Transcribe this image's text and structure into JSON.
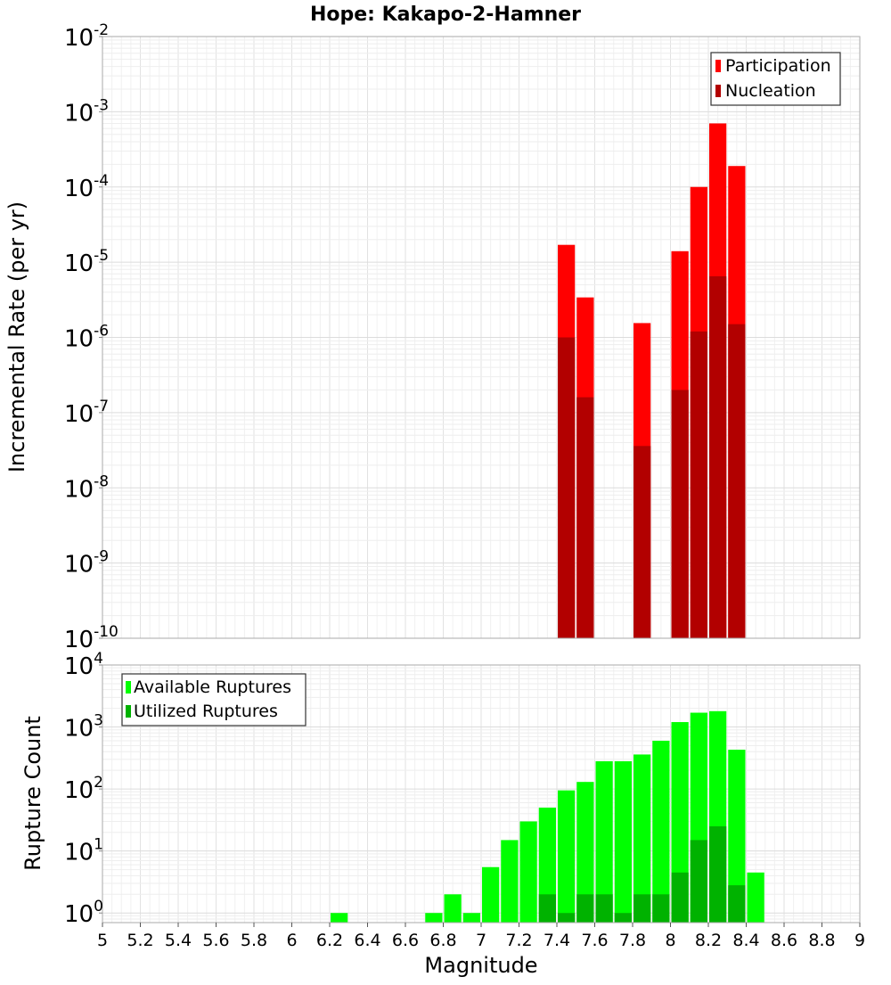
{
  "chart_data": [
    {
      "type": "bar",
      "title": "Hope: Kakapo-2-Hamner",
      "ylabel": "Incremental Rate (per yr)",
      "yscale": "log",
      "ylim": [
        1e-10,
        0.01
      ],
      "xlim": [
        5,
        9
      ],
      "grid": true,
      "legend_position": "top-right",
      "series": [
        {
          "name": "Participation",
          "color": "#ff0000",
          "points": [
            {
              "x": 7.45,
              "y": 1.7e-05
            },
            {
              "x": 7.55,
              "y": 3.4e-06
            },
            {
              "x": 7.85,
              "y": 1.55e-06
            },
            {
              "x": 8.05,
              "y": 1.4e-05
            },
            {
              "x": 8.15,
              "y": 0.0001
            },
            {
              "x": 8.25,
              "y": 0.0007
            },
            {
              "x": 8.35,
              "y": 0.00019
            }
          ]
        },
        {
          "name": "Nucleation",
          "color": "#b20000",
          "points": [
            {
              "x": 7.45,
              "y": 1e-06
            },
            {
              "x": 7.55,
              "y": 1.6e-07
            },
            {
              "x": 7.85,
              "y": 3.6e-08
            },
            {
              "x": 8.05,
              "y": 2e-07
            },
            {
              "x": 8.15,
              "y": 1.2e-06
            },
            {
              "x": 8.25,
              "y": 6.5e-06
            },
            {
              "x": 8.35,
              "y": 1.5e-06
            }
          ]
        }
      ],
      "yticks": [
        {
          "base": "10",
          "exp": "-2"
        },
        {
          "base": "10",
          "exp": "-3"
        },
        {
          "base": "10",
          "exp": "-4"
        },
        {
          "base": "10",
          "exp": "-5"
        },
        {
          "base": "10",
          "exp": "-6"
        },
        {
          "base": "10",
          "exp": "-7"
        },
        {
          "base": "10",
          "exp": "-8"
        },
        {
          "base": "10",
          "exp": "-9"
        },
        {
          "base": "10",
          "exp": "-10"
        }
      ]
    },
    {
      "type": "bar",
      "title": "",
      "xlabel": "Magnitude",
      "ylabel": "Rupture Count",
      "yscale": "log",
      "ylim": [
        0.7,
        10000
      ],
      "xlim": [
        5,
        9
      ],
      "grid": true,
      "legend_position": "top-left",
      "series": [
        {
          "name": "Available Ruptures",
          "color": "#00ff00",
          "points": [
            {
              "x": 6.25,
              "y": 1
            },
            {
              "x": 6.75,
              "y": 1
            },
            {
              "x": 6.85,
              "y": 2
            },
            {
              "x": 6.95,
              "y": 1
            },
            {
              "x": 7.05,
              "y": 5.5
            },
            {
              "x": 7.15,
              "y": 15
            },
            {
              "x": 7.25,
              "y": 30
            },
            {
              "x": 7.35,
              "y": 50
            },
            {
              "x": 7.45,
              "y": 95
            },
            {
              "x": 7.55,
              "y": 130
            },
            {
              "x": 7.65,
              "y": 280
            },
            {
              "x": 7.75,
              "y": 280
            },
            {
              "x": 7.85,
              "y": 360
            },
            {
              "x": 7.95,
              "y": 600
            },
            {
              "x": 8.05,
              "y": 1200
            },
            {
              "x": 8.15,
              "y": 1700
            },
            {
              "x": 8.25,
              "y": 1800
            },
            {
              "x": 8.35,
              "y": 430
            },
            {
              "x": 8.45,
              "y": 4.5
            }
          ]
        },
        {
          "name": "Utilized Ruptures",
          "color": "#00b200",
          "points": [
            {
              "x": 7.35,
              "y": 2
            },
            {
              "x": 7.45,
              "y": 1
            },
            {
              "x": 7.55,
              "y": 2
            },
            {
              "x": 7.65,
              "y": 2
            },
            {
              "x": 7.75,
              "y": 1
            },
            {
              "x": 7.85,
              "y": 2
            },
            {
              "x": 7.95,
              "y": 2
            },
            {
              "x": 8.05,
              "y": 4.5
            },
            {
              "x": 8.15,
              "y": 15
            },
            {
              "x": 8.25,
              "y": 25
            },
            {
              "x": 8.35,
              "y": 2.8
            }
          ]
        }
      ],
      "xticks": [
        "5",
        "5.2",
        "5.4",
        "5.6",
        "5.8",
        "6",
        "6.2",
        "6.4",
        "6.6",
        "6.8",
        "7",
        "7.2",
        "7.4",
        "7.6",
        "7.8",
        "8",
        "8.2",
        "8.4",
        "8.6",
        "8.8",
        "9"
      ],
      "yticks": [
        {
          "base": "10",
          "exp": "4"
        },
        {
          "base": "10",
          "exp": "3"
        },
        {
          "base": "10",
          "exp": "2"
        },
        {
          "base": "10",
          "exp": "1"
        },
        {
          "base": "10",
          "exp": "0"
        }
      ]
    }
  ]
}
